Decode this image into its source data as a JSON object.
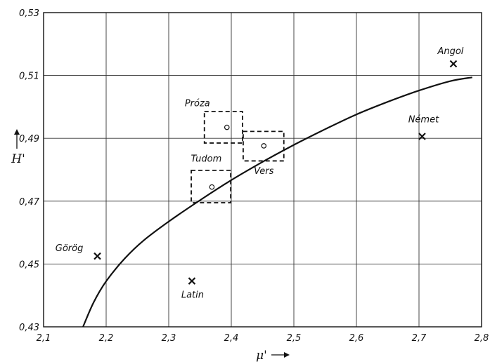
{
  "chart_data": {
    "type": "scatter",
    "xlabel": "μ'",
    "ylabel": "H'",
    "xlim": [
      2.1,
      2.8
    ],
    "ylim": [
      0.43,
      0.53
    ],
    "xticks": [
      {
        "value": 2.1,
        "label": "2,1"
      },
      {
        "value": 2.2,
        "label": "2,2"
      },
      {
        "value": 2.3,
        "label": "2,3"
      },
      {
        "value": 2.4,
        "label": "2,4"
      },
      {
        "value": 2.5,
        "label": "2,5"
      },
      {
        "value": 2.6,
        "label": "2,6"
      },
      {
        "value": 2.7,
        "label": "2,7"
      },
      {
        "value": 2.8,
        "label": "2,8"
      }
    ],
    "yticks": [
      {
        "value": 0.43,
        "label": "0,43"
      },
      {
        "value": 0.45,
        "label": "0,45"
      },
      {
        "value": 0.47,
        "label": "0,47"
      },
      {
        "value": 0.49,
        "label": "0,49"
      },
      {
        "value": 0.51,
        "label": "0,51"
      },
      {
        "value": 0.53,
        "label": "0,53"
      }
    ],
    "grid": true,
    "languages": [
      {
        "label": "Angol",
        "x": 2.755,
        "y": 0.5137
      },
      {
        "label": "Német",
        "x": 2.705,
        "y": 0.4906
      },
      {
        "label": "Görög",
        "x": 2.186,
        "y": 0.4525
      },
      {
        "label": "Latin",
        "x": 2.337,
        "y": 0.4446
      }
    ],
    "text_styles": [
      {
        "label": "Próza",
        "x": 2.393,
        "y": 0.4935,
        "x_range": [
          2.357,
          2.418
        ],
        "y_range": [
          0.4885,
          0.4985
        ]
      },
      {
        "label": "Vers",
        "x": 2.452,
        "y": 0.4876,
        "x_range": [
          2.419,
          2.484
        ],
        "y_range": [
          0.4828,
          0.4922
        ]
      },
      {
        "label": "Tudom",
        "x": 2.369,
        "y": 0.4745,
        "x_range": [
          2.336,
          2.399
        ],
        "y_range": [
          0.4695,
          0.4798
        ]
      }
    ],
    "curve": {
      "x": [
        2.163,
        2.18,
        2.2,
        2.23,
        2.26,
        2.3,
        2.35,
        2.4,
        2.45,
        2.5,
        2.55,
        2.6,
        2.65,
        2.7,
        2.75,
        2.785
      ],
      "y": [
        0.43,
        0.4378,
        0.4445,
        0.4518,
        0.4575,
        0.4635,
        0.4703,
        0.4767,
        0.4825,
        0.4879,
        0.4929,
        0.4976,
        0.5016,
        0.5052,
        0.5082,
        0.5094
      ]
    }
  }
}
